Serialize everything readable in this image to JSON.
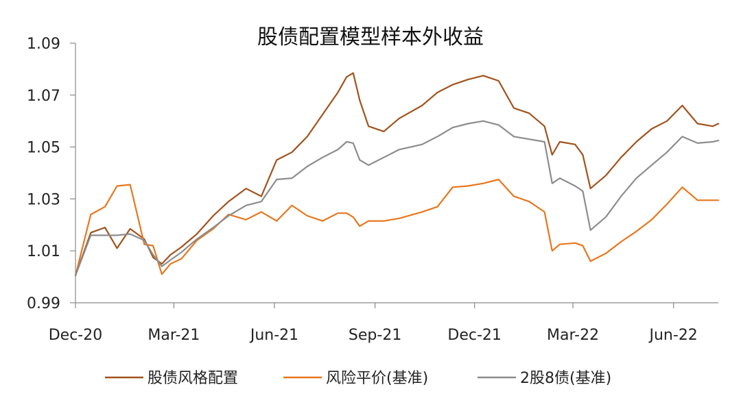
{
  "chart_data": {
    "type": "line",
    "title": "股债配置模型样本外收益",
    "xlabel": "",
    "ylabel": "",
    "x_ticks": [
      "Dec-20",
      "Mar-21",
      "Jun-21",
      "Sep-21",
      "Dec-21",
      "Mar-22",
      "Jun-22"
    ],
    "y_ticks": [
      "0.99",
      "1.01",
      "1.03",
      "1.05",
      "1.07",
      "1.09"
    ],
    "ylim": [
      0.99,
      1.09
    ],
    "xlim": [
      "2020-12-01",
      "2022-07-12"
    ],
    "grid": false,
    "legend_position": "bottom",
    "dates": [
      "2020-12-01",
      "2020-12-15",
      "2020-12-28",
      "2021-01-08",
      "2021-01-20",
      "2021-02-02",
      "2021-02-10",
      "2021-02-18",
      "2021-02-26",
      "2021-03-08",
      "2021-03-22",
      "2021-04-06",
      "2021-04-20",
      "2021-05-06",
      "2021-05-20",
      "2021-06-03",
      "2021-06-17",
      "2021-07-01",
      "2021-07-15",
      "2021-07-29",
      "2021-08-06",
      "2021-08-12",
      "2021-08-18",
      "2021-08-26",
      "2021-09-09",
      "2021-09-23",
      "2021-10-14",
      "2021-10-28",
      "2021-11-11",
      "2021-11-25",
      "2021-12-09",
      "2021-12-23",
      "2022-01-06",
      "2022-01-20",
      "2022-02-03",
      "2022-02-10",
      "2022-02-17",
      "2022-03-03",
      "2022-03-10",
      "2022-03-17",
      "2022-03-31",
      "2022-04-14",
      "2022-04-28",
      "2022-05-12",
      "2022-05-26",
      "2022-06-09",
      "2022-06-23",
      "2022-07-07",
      "2022-07-12"
    ],
    "series": [
      {
        "name": "股债风格配置",
        "color": "#a0521c",
        "values": [
          1.0005,
          1.017,
          1.019,
          1.011,
          1.0185,
          1.0145,
          1.0075,
          1.005,
          1.0085,
          1.0115,
          1.0165,
          1.0235,
          1.029,
          1.034,
          1.031,
          1.045,
          1.048,
          1.054,
          1.0625,
          1.071,
          1.077,
          1.0785,
          1.068,
          1.058,
          1.056,
          1.061,
          1.066,
          1.071,
          1.074,
          1.076,
          1.0775,
          1.0755,
          1.065,
          1.063,
          1.058,
          1.047,
          1.052,
          1.051,
          1.047,
          1.034,
          1.039,
          1.046,
          1.052,
          1.057,
          1.06,
          1.066,
          1.059,
          1.058,
          1.059
        ]
      },
      {
        "name": "风险平价(基准)",
        "color": "#e8761c",
        "values": [
          1.0005,
          1.024,
          1.027,
          1.035,
          1.0355,
          1.0125,
          1.012,
          1.001,
          1.005,
          1.007,
          1.014,
          1.0185,
          1.024,
          1.022,
          1.025,
          1.0215,
          1.0275,
          1.0235,
          1.0215,
          1.0245,
          1.0245,
          1.023,
          1.0195,
          1.0215,
          1.0215,
          1.0225,
          1.025,
          1.027,
          1.0345,
          1.035,
          1.036,
          1.0375,
          1.031,
          1.029,
          1.025,
          1.01,
          1.0125,
          1.013,
          1.012,
          1.006,
          1.009,
          1.0135,
          1.0175,
          1.022,
          1.028,
          1.0345,
          1.0295,
          1.0295,
          1.0295
        ]
      },
      {
        "name": "2股8债(基准)",
        "color": "#8c8c8c",
        "values": [
          1.0005,
          1.016,
          1.016,
          1.016,
          1.0165,
          1.014,
          1.0085,
          1.004,
          1.0065,
          1.0095,
          1.0145,
          1.019,
          1.0235,
          1.0275,
          1.029,
          1.0375,
          1.038,
          1.0425,
          1.046,
          1.049,
          1.052,
          1.0515,
          1.045,
          1.043,
          1.046,
          1.049,
          1.051,
          1.054,
          1.0575,
          1.059,
          1.06,
          1.0585,
          1.054,
          1.053,
          1.052,
          1.036,
          1.038,
          1.035,
          1.033,
          1.018,
          1.023,
          1.031,
          1.038,
          1.043,
          1.048,
          1.054,
          1.0515,
          1.052,
          1.0525
        ]
      }
    ]
  }
}
